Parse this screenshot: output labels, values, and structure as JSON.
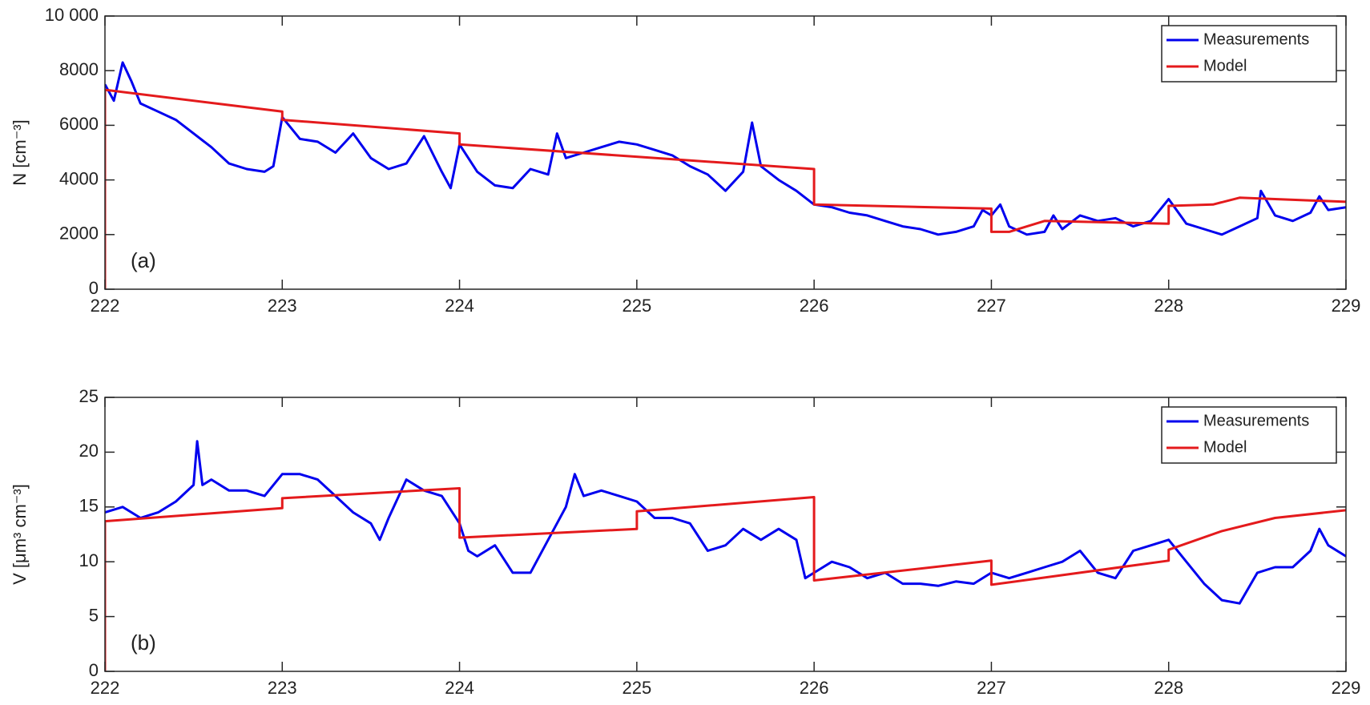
{
  "chart_data": [
    {
      "type": "line",
      "ylabel": "N [cm⁻³]",
      "annotation": "(a)",
      "legend": "upper right",
      "xlim": [
        222,
        229
      ],
      "xticks": [
        222,
        223,
        224,
        225,
        226,
        227,
        228,
        229
      ],
      "ylim": [
        0,
        10000
      ],
      "yticks": [
        0,
        2000,
        4000,
        6000,
        8000,
        {
          "value": 10000,
          "label": "10 000"
        }
      ],
      "series": [
        {
          "name": "Measurements",
          "color": "#0000ee",
          "x": [
            222.0,
            222.05,
            222.1,
            222.15,
            222.2,
            222.3,
            222.4,
            222.5,
            222.6,
            222.7,
            222.8,
            222.9,
            222.95,
            223.0,
            223.1,
            223.2,
            223.3,
            223.4,
            223.5,
            223.6,
            223.7,
            223.8,
            223.9,
            223.95,
            224.0,
            224.1,
            224.2,
            224.3,
            224.4,
            224.5,
            224.55,
            224.6,
            224.7,
            224.8,
            224.9,
            225.0,
            225.1,
            225.2,
            225.3,
            225.4,
            225.5,
            225.6,
            225.65,
            225.7,
            225.8,
            225.9,
            226.0,
            226.1,
            226.2,
            226.3,
            226.4,
            226.5,
            226.6,
            226.7,
            226.8,
            226.9,
            226.95,
            227.0,
            227.05,
            227.1,
            227.2,
            227.3,
            227.35,
            227.4,
            227.5,
            227.6,
            227.7,
            227.8,
            227.9,
            228.0,
            228.1,
            228.2,
            228.3,
            228.4,
            228.5,
            228.52,
            228.6,
            228.7,
            228.8,
            228.85,
            228.9,
            229.0
          ],
          "values": [
            7500,
            6900,
            8300,
            7600,
            6800,
            6500,
            6200,
            5700,
            5200,
            4600,
            4400,
            4300,
            4500,
            6300,
            5500,
            5400,
            5000,
            5700,
            4800,
            4400,
            4600,
            5600,
            4300,
            3700,
            5300,
            4300,
            3800,
            3700,
            4400,
            4200,
            5700,
            4800,
            5000,
            5200,
            5400,
            5300,
            5100,
            4900,
            4500,
            4200,
            3600,
            4300,
            6100,
            4500,
            4000,
            3600,
            3100,
            3000,
            2800,
            2700,
            2500,
            2300,
            2200,
            2000,
            2100,
            2300,
            2900,
            2700,
            3100,
            2300,
            2000,
            2100,
            2700,
            2200,
            2700,
            2500,
            2600,
            2300,
            2500,
            3300,
            2400,
            2200,
            2000,
            2300,
            2600,
            3600,
            2700,
            2500,
            2800,
            3400,
            2900,
            3000
          ]
        },
        {
          "name": "Model",
          "color": "#e41a1c",
          "x": [
            222,
            222,
            223,
            223,
            224,
            224,
            226,
            226,
            227,
            227,
            227.1,
            227.3,
            228,
            228,
            228.25,
            228.4,
            229
          ],
          "values": [
            0,
            7300,
            6500,
            6200,
            5700,
            5300,
            4400,
            3100,
            2950,
            2100,
            2100,
            2500,
            2400,
            3050,
            3100,
            3350,
            3200
          ]
        }
      ]
    },
    {
      "type": "line",
      "ylabel": "V [μm³ cm⁻³]",
      "annotation": "(b)",
      "legend": "upper right",
      "xlim": [
        222,
        229
      ],
      "xticks": [
        222,
        223,
        224,
        225,
        226,
        227,
        228,
        229
      ],
      "ylim": [
        0,
        25
      ],
      "yticks": [
        0,
        5,
        10,
        15,
        20,
        25
      ],
      "series": [
        {
          "name": "Measurements",
          "color": "#0000ee",
          "x": [
            222.0,
            222.1,
            222.2,
            222.3,
            222.4,
            222.5,
            222.52,
            222.55,
            222.6,
            222.7,
            222.8,
            222.9,
            223.0,
            223.1,
            223.2,
            223.3,
            223.4,
            223.5,
            223.55,
            223.6,
            223.7,
            223.8,
            223.9,
            224.0,
            224.05,
            224.1,
            224.2,
            224.3,
            224.4,
            224.5,
            224.6,
            224.65,
            224.7,
            224.8,
            224.9,
            225.0,
            225.1,
            225.2,
            225.3,
            225.4,
            225.5,
            225.6,
            225.7,
            225.8,
            225.9,
            225.95,
            226.0,
            226.1,
            226.2,
            226.3,
            226.4,
            226.5,
            226.6,
            226.7,
            226.8,
            226.9,
            227.0,
            227.1,
            227.2,
            227.3,
            227.4,
            227.5,
            227.6,
            227.7,
            227.8,
            227.9,
            228.0,
            228.1,
            228.2,
            228.3,
            228.4,
            228.5,
            228.6,
            228.7,
            228.8,
            228.85,
            228.9,
            229.0
          ],
          "values": [
            14.5,
            15,
            14,
            14.5,
            15.5,
            17,
            21,
            17,
            17.5,
            16.5,
            16.5,
            16,
            18,
            18,
            17.5,
            16,
            14.5,
            13.5,
            12,
            14,
            17.5,
            16.5,
            16,
            13.5,
            11,
            10.5,
            11.5,
            9,
            9,
            12,
            15,
            18,
            16,
            16.5,
            16,
            15.5,
            14,
            14,
            13.5,
            11,
            11.5,
            13,
            12,
            13,
            12,
            8.5,
            9,
            10,
            9.5,
            8.5,
            9,
            8,
            8,
            7.8,
            8.2,
            8,
            9,
            8.5,
            9,
            9.5,
            10,
            11,
            9,
            8.5,
            11,
            11.5,
            12,
            10,
            8,
            6.5,
            6.2,
            9,
            9.5,
            9.5,
            11,
            13,
            11.5,
            10.5
          ]
        },
        {
          "name": "Model",
          "color": "#e41a1c",
          "x": [
            222,
            222,
            223,
            223,
            224,
            224,
            225,
            225,
            226,
            226,
            227,
            227,
            228,
            228,
            228.3,
            228.6,
            229
          ],
          "values": [
            0,
            13.7,
            14.9,
            15.8,
            16.7,
            12.2,
            13,
            14.6,
            15.9,
            8.3,
            10.1,
            7.9,
            10.1,
            11.1,
            12.8,
            14,
            14.7
          ]
        }
      ]
    }
  ]
}
